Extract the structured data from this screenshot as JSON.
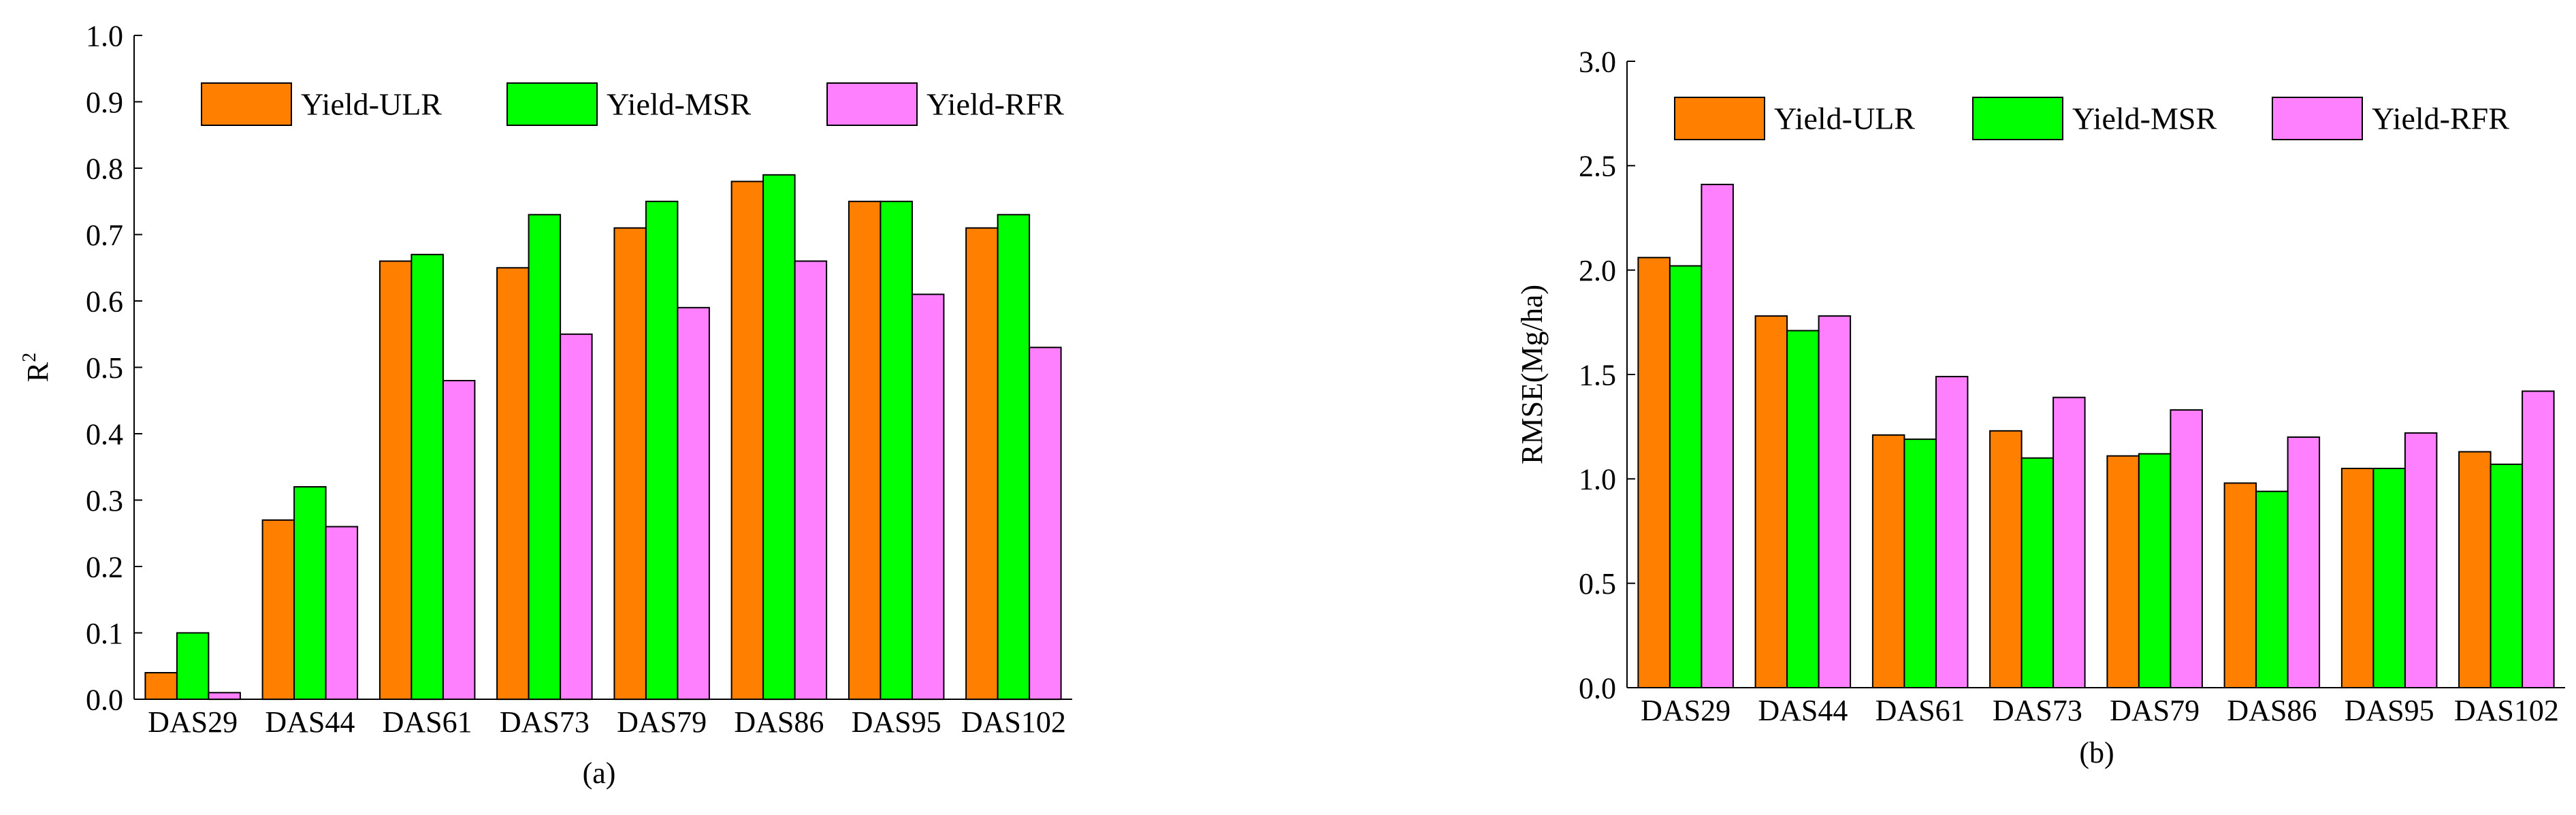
{
  "chart_data": [
    {
      "type": "bar",
      "panel_label": "(a)",
      "title": "",
      "xlabel": "",
      "ylabel": "R",
      "ylabel_superscript": "2",
      "ylim": [
        0,
        1.0
      ],
      "yticks": [
        "0.0",
        "0.1",
        "0.2",
        "0.3",
        "0.4",
        "0.5",
        "0.6",
        "0.7",
        "0.8",
        "0.9",
        "1.0"
      ],
      "ytick_values": [
        0.0,
        0.1,
        0.2,
        0.3,
        0.4,
        0.5,
        0.6,
        0.7,
        0.8,
        0.9,
        1.0
      ],
      "categories": [
        "DAS29",
        "DAS44",
        "DAS61",
        "DAS73",
        "DAS79",
        "DAS86",
        "DAS95",
        "DAS102"
      ],
      "legend_position": "top",
      "series": [
        {
          "name": "Yield-ULR",
          "color": "#FF7F00",
          "values": [
            0.04,
            0.27,
            0.66,
            0.65,
            0.71,
            0.78,
            0.75,
            0.71
          ]
        },
        {
          "name": "Yield-MSR",
          "color": "#00FF00",
          "values": [
            0.1,
            0.32,
            0.67,
            0.73,
            0.75,
            0.79,
            0.75,
            0.73
          ]
        },
        {
          "name": "Yield-RFR",
          "color": "#FF80FF",
          "values": [
            0.01,
            0.26,
            0.48,
            0.55,
            0.59,
            0.66,
            0.61,
            0.53
          ]
        }
      ]
    },
    {
      "type": "bar",
      "panel_label": "(b)",
      "title": "",
      "xlabel": "",
      "ylabel": "RMSE(Mg/ha)",
      "ylim": [
        0,
        3.0
      ],
      "yticks": [
        "0.0",
        "0.5",
        "1.0",
        "1.5",
        "2.0",
        "2.5",
        "3.0"
      ],
      "ytick_values": [
        0.0,
        0.5,
        1.0,
        1.5,
        2.0,
        2.5,
        3.0
      ],
      "categories": [
        "DAS29",
        "DAS44",
        "DAS61",
        "DAS73",
        "DAS79",
        "DAS86",
        "DAS95",
        "DAS102"
      ],
      "legend_position": "top",
      "series": [
        {
          "name": "Yield-ULR",
          "color": "#FF7F00",
          "values": [
            2.06,
            1.78,
            1.21,
            1.23,
            1.11,
            0.98,
            1.05,
            1.13
          ]
        },
        {
          "name": "Yield-MSR",
          "color": "#00FF00",
          "values": [
            2.02,
            1.71,
            1.19,
            1.1,
            1.12,
            0.94,
            1.05,
            1.07
          ]
        },
        {
          "name": "Yield-RFR",
          "color": "#FF80FF",
          "values": [
            2.41,
            1.78,
            1.49,
            1.39,
            1.33,
            1.2,
            1.22,
            1.42
          ]
        }
      ]
    }
  ]
}
